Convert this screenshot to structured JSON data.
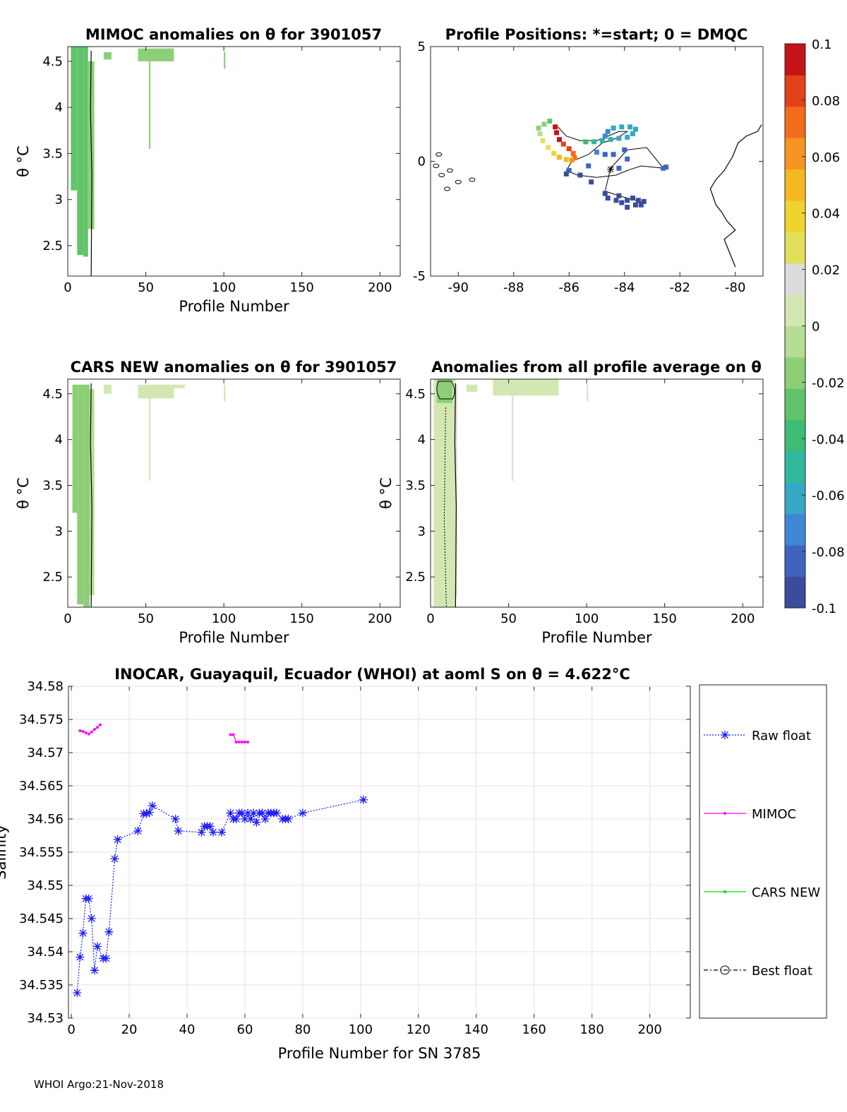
{
  "footer": "WHOI Argo:21-Nov-2018",
  "colorbar": {
    "tick_labels": [
      "0.1",
      "0.08",
      "0.06",
      "0.04",
      "0.02",
      "0",
      "-0.02",
      "-0.04",
      "-0.06",
      "-0.08",
      "-0.1"
    ],
    "range": [
      -0.1,
      0.1
    ],
    "colors": [
      "#3a4c9b",
      "#3f64c0",
      "#3d87d6",
      "#35a8c5",
      "#2fb89c",
      "#3cbc74",
      "#62c46a",
      "#8ccf77",
      "#b5dd94",
      "#d3e7b2",
      "#dcdcdc",
      "#e2e05a",
      "#efd430",
      "#f5b823",
      "#f59420",
      "#f16d1b",
      "#e2421a",
      "#c51417"
    ]
  },
  "chart_data": [
    {
      "id": "mimoc",
      "type": "heatmap",
      "title": "MIMOC anomalies on θ  for 3901057",
      "xlabel": "Profile Number",
      "ylabel": "θ °C",
      "xlim": [
        0,
        213
      ],
      "ylim": [
        2.17,
        4.66
      ],
      "xticks": [
        "0",
        "50",
        "100",
        "150",
        "200"
      ],
      "yticks": [
        "2.5",
        "3",
        "3.5",
        "4",
        "4.5"
      ],
      "cells": [
        {
          "x0": 2,
          "x1": 6,
          "y0": 3.1,
          "y1": 4.66,
          "v": -0.03
        },
        {
          "x0": 6,
          "x1": 10,
          "y0": 2.4,
          "y1": 4.66,
          "v": -0.028
        },
        {
          "x0": 10,
          "x1": 13,
          "y0": 2.38,
          "y1": 4.66,
          "v": -0.024
        },
        {
          "x0": 13,
          "x1": 17,
          "y0": 2.68,
          "y1": 4.5,
          "v": -0.018
        },
        {
          "x0": 23,
          "x1": 28,
          "y0": 4.52,
          "y1": 4.6,
          "v": -0.012
        },
        {
          "x0": 45,
          "x1": 68,
          "y0": 4.5,
          "y1": 4.64,
          "v": -0.012
        },
        {
          "x0": 52,
          "x1": 53,
          "y0": 3.55,
          "y1": 4.5,
          "v": -0.012
        },
        {
          "x0": 100,
          "x1": 101,
          "y0": 4.42,
          "y1": 4.6,
          "v": -0.012
        }
      ],
      "contour_x": 15
    },
    {
      "id": "positions",
      "type": "scatter",
      "title": "Profile Positions: *=start; 0 = DMQC",
      "xlim": [
        -91,
        -79
      ],
      "ylim": [
        -5,
        5
      ],
      "xticks": [
        "-90",
        "-88",
        "-86",
        "-84",
        "-82",
        "-80"
      ],
      "yticks": [
        "-5",
        "0",
        "5"
      ],
      "track": [
        [
          -86.4,
          1.5
        ],
        [
          -86.1,
          1.1
        ],
        [
          -85.6,
          0.9
        ],
        [
          -85.0,
          0.9
        ],
        [
          -84.6,
          1.1
        ],
        [
          -84.2,
          1.3
        ],
        [
          -83.9,
          1.3
        ],
        [
          -84.3,
          1.0
        ],
        [
          -84.8,
          0.8
        ],
        [
          -85.3,
          0.3
        ],
        [
          -85.9,
          0.0
        ],
        [
          -86.1,
          -0.4
        ],
        [
          -85.7,
          -0.6
        ],
        [
          -85.0,
          -0.7
        ],
        [
          -84.3,
          -0.6
        ],
        [
          -83.9,
          -0.4
        ],
        [
          -83.4,
          -0.2
        ],
        [
          -82.6,
          -0.3
        ],
        [
          -83.2,
          0.6
        ],
        [
          -83.9,
          0.5
        ],
        [
          -84.5,
          -0.3
        ],
        [
          -84.7,
          -1.3
        ],
        [
          -84.2,
          -1.5
        ],
        [
          -83.6,
          -1.7
        ],
        [
          -83.3,
          -1.8
        ]
      ],
      "points": [
        {
          "x": -86.5,
          "y": 1.5,
          "v": 0.095
        },
        {
          "x": -86.45,
          "y": 1.25,
          "v": 0.095
        },
        {
          "x": -86.35,
          "y": 0.95,
          "v": 0.09
        },
        {
          "x": -86.2,
          "y": 0.75,
          "v": 0.085
        },
        {
          "x": -86.0,
          "y": 0.55,
          "v": 0.08
        },
        {
          "x": -85.85,
          "y": 0.35,
          "v": 0.075
        },
        {
          "x": -85.8,
          "y": 0.15,
          "v": 0.07
        },
        {
          "x": -85.9,
          "y": 0.05,
          "v": 0.062
        },
        {
          "x": -86.1,
          "y": 0.08,
          "v": 0.055
        },
        {
          "x": -86.35,
          "y": 0.18,
          "v": 0.045
        },
        {
          "x": -86.55,
          "y": 0.35,
          "v": 0.035
        },
        {
          "x": -86.75,
          "y": 0.6,
          "v": 0.03
        },
        {
          "x": -86.95,
          "y": 0.9,
          "v": 0.025
        },
        {
          "x": -87.05,
          "y": 1.2,
          "v": -0.01
        },
        {
          "x": -87.1,
          "y": 1.45,
          "v": -0.015
        },
        {
          "x": -86.9,
          "y": 1.62,
          "v": -0.02
        },
        {
          "x": -86.7,
          "y": 1.75,
          "v": -0.025
        },
        {
          "x": -85.4,
          "y": 0.85,
          "v": -0.04
        },
        {
          "x": -85.1,
          "y": 0.85,
          "v": -0.045
        },
        {
          "x": -84.8,
          "y": 0.9,
          "v": -0.05
        },
        {
          "x": -84.5,
          "y": 0.95,
          "v": -0.055
        },
        {
          "x": -84.2,
          "y": 1.0,
          "v": -0.058
        },
        {
          "x": -83.9,
          "y": 1.05,
          "v": -0.06
        },
        {
          "x": -83.7,
          "y": 1.2,
          "v": -0.062
        },
        {
          "x": -83.6,
          "y": 1.4,
          "v": -0.062
        },
        {
          "x": -83.8,
          "y": 1.5,
          "v": -0.064
        },
        {
          "x": -84.1,
          "y": 1.5,
          "v": -0.065
        },
        {
          "x": -84.4,
          "y": 1.45,
          "v": -0.066
        },
        {
          "x": -84.6,
          "y": 1.3,
          "v": -0.067
        },
        {
          "x": -84.7,
          "y": 1.1,
          "v": -0.068
        },
        {
          "x": -85.0,
          "y": 0.4,
          "v": -0.075
        },
        {
          "x": -84.7,
          "y": 0.3,
          "v": -0.078
        },
        {
          "x": -84.4,
          "y": 0.3,
          "v": -0.078
        },
        {
          "x": -84.0,
          "y": 0.5,
          "v": -0.08
        },
        {
          "x": -83.9,
          "y": 0.1,
          "v": -0.08
        },
        {
          "x": -84.2,
          "y": -0.3,
          "v": -0.082
        },
        {
          "x": -82.6,
          "y": -0.3,
          "v": -0.08
        },
        {
          "x": -82.5,
          "y": -0.25,
          "v": -0.082
        },
        {
          "x": -85.3,
          "y": -0.2,
          "v": -0.085
        },
        {
          "x": -86.0,
          "y": -0.4,
          "v": -0.088
        },
        {
          "x": -86.1,
          "y": -0.55,
          "v": -0.09
        },
        {
          "x": -85.6,
          "y": -0.6,
          "v": -0.09
        },
        {
          "x": -85.2,
          "y": -0.9,
          "v": -0.09
        },
        {
          "x": -84.7,
          "y": -1.4,
          "v": -0.092
        },
        {
          "x": -84.6,
          "y": -1.6,
          "v": -0.092
        },
        {
          "x": -84.3,
          "y": -1.7,
          "v": -0.094
        },
        {
          "x": -84.1,
          "y": -1.8,
          "v": -0.094
        },
        {
          "x": -83.9,
          "y": -1.7,
          "v": -0.094
        },
        {
          "x": -83.7,
          "y": -1.6,
          "v": -0.094
        },
        {
          "x": -83.5,
          "y": -1.7,
          "v": -0.095
        },
        {
          "x": -83.4,
          "y": -1.9,
          "v": -0.096
        },
        {
          "x": -83.3,
          "y": -1.75,
          "v": -0.096
        },
        {
          "x": -83.6,
          "y": -1.9,
          "v": -0.095
        },
        {
          "x": -83.9,
          "y": -2.0,
          "v": -0.095
        },
        {
          "x": -84.2,
          "y": -1.5,
          "v": -0.094
        }
      ],
      "start": {
        "x": -84.5,
        "y": -0.35
      }
    },
    {
      "id": "cars",
      "type": "heatmap",
      "title": "CARS NEW anomalies on θ for 3901057",
      "xlabel": "Profile Number",
      "ylabel": "θ °C",
      "xlim": [
        0,
        213
      ],
      "ylim": [
        2.17,
        4.66
      ],
      "xticks": [
        "0",
        "50",
        "100",
        "150",
        "200"
      ],
      "yticks": [
        "2.5",
        "3",
        "3.5",
        "4",
        "4.5"
      ],
      "cells": [
        {
          "x0": 3,
          "x1": 6,
          "y0": 3.2,
          "y1": 4.6,
          "v": -0.016
        },
        {
          "x0": 6,
          "x1": 10,
          "y0": 2.2,
          "y1": 4.6,
          "v": -0.014
        },
        {
          "x0": 10,
          "x1": 14,
          "y0": 2.17,
          "y1": 4.6,
          "v": -0.012
        },
        {
          "x0": 14,
          "x1": 17,
          "y0": 2.3,
          "y1": 4.55,
          "v": -0.01
        },
        {
          "x0": 23,
          "x1": 28,
          "y0": 4.5,
          "y1": 4.6,
          "v": 0.0
        },
        {
          "x0": 45,
          "x1": 68,
          "y0": 4.45,
          "y1": 4.6,
          "v": 0.0
        },
        {
          "x0": 52,
          "x1": 53,
          "y0": 3.55,
          "y1": 4.5,
          "v": 0.0
        },
        {
          "x0": 68,
          "x1": 75,
          "y0": 4.56,
          "y1": 4.6,
          "v": 0.0
        },
        {
          "x0": 100,
          "x1": 101,
          "y0": 4.42,
          "y1": 4.6,
          "v": 0.0
        }
      ],
      "contour_x": 15
    },
    {
      "id": "allavg",
      "type": "heatmap",
      "title": "Anomalies from all profile average on θ",
      "xlabel": "Profile Number",
      "ylabel": "θ °C",
      "xlim": [
        0,
        213
      ],
      "ylim": [
        2.17,
        4.66
      ],
      "xticks": [
        "0",
        "50",
        "100",
        "150",
        "200"
      ],
      "yticks": [
        "2.5",
        "3",
        "3.5",
        "4",
        "4.5"
      ],
      "cells": [
        {
          "x0": 2,
          "x1": 16,
          "y0": 2.17,
          "y1": 4.66,
          "v": 0.0
        },
        {
          "x0": 4,
          "x1": 14,
          "y0": 4.4,
          "y1": 4.66,
          "v": -0.014
        },
        {
          "x0": 16,
          "x1": 17,
          "y0": 2.3,
          "y1": 4.6,
          "v": 0.015
        },
        {
          "x0": 23,
          "x1": 30,
          "y0": 4.52,
          "y1": 4.6,
          "v": 0.0
        },
        {
          "x0": 40,
          "x1": 82,
          "y0": 4.48,
          "y1": 4.66,
          "v": 0.0
        },
        {
          "x0": 52,
          "x1": 53,
          "y0": 3.55,
          "y1": 4.5,
          "v": 0.015
        },
        {
          "x0": 100,
          "x1": 101,
          "y0": 4.42,
          "y1": 4.6,
          "v": 0.015
        }
      ],
      "contour_x": 16
    },
    {
      "id": "salinity",
      "type": "line",
      "title": "INOCAR, Guayaquil, Ecuador (WHOI) at aoml S on θ = 4.622°C",
      "xlabel": "Profile Number for SN 3785",
      "ylabel": "Salinity",
      "xlim": [
        -1,
        214
      ],
      "ylim": [
        34.53,
        34.58
      ],
      "xticks": [
        "0",
        "20",
        "40",
        "60",
        "80",
        "100",
        "120",
        "140",
        "160",
        "180",
        "200"
      ],
      "yticks": [
        "34.53",
        "34.535",
        "34.54",
        "34.545",
        "34.55",
        "34.555",
        "34.56",
        "34.565",
        "34.57",
        "34.575",
        "34.58"
      ],
      "legend": [
        "Raw float",
        "MIMOC",
        "CARS NEW",
        "Best float"
      ],
      "series": [
        {
          "name": "Raw float",
          "color": "#1a1aff",
          "x": [
            2,
            3,
            4,
            5,
            6,
            7,
            8,
            9,
            11,
            12,
            13,
            15,
            16,
            23,
            25,
            26,
            27,
            28,
            36,
            37,
            45,
            46,
            47,
            48,
            49,
            52,
            55,
            56,
            57,
            58,
            59,
            60,
            61,
            62,
            63,
            64,
            65,
            66,
            67,
            68,
            69,
            70,
            71,
            73,
            74,
            75,
            80,
            101
          ],
          "y": [
            34.5338,
            34.5392,
            34.5428,
            34.548,
            34.548,
            34.545,
            34.5372,
            34.5408,
            34.539,
            34.539,
            34.543,
            34.554,
            34.5569,
            34.5582,
            34.5608,
            34.5608,
            34.561,
            34.562,
            34.56,
            34.5582,
            34.558,
            34.5589,
            34.5589,
            34.5589,
            34.558,
            34.558,
            34.5609,
            34.56,
            34.56,
            34.5609,
            34.5609,
            34.56,
            34.5609,
            34.56,
            34.5609,
            34.5595,
            34.5609,
            34.5609,
            34.56,
            34.5609,
            34.5609,
            34.5609,
            34.5609,
            34.56,
            34.56,
            34.56,
            34.5609,
            34.5629
          ]
        },
        {
          "name": "MIMOC",
          "color": "#ff00ff",
          "x": [
            3,
            4,
            5,
            6,
            7,
            8,
            9,
            10,
            55,
            56,
            57,
            58,
            59,
            60,
            61
          ],
          "y": [
            34.5733,
            34.5732,
            34.573,
            34.5728,
            34.5731,
            34.5735,
            34.5738,
            34.5742,
            34.5727,
            34.5727,
            34.5716,
            34.5716,
            34.5716,
            34.5716,
            34.5716
          ]
        },
        {
          "name": "CARS NEW",
          "color": "#00e000",
          "x": [],
          "y": []
        },
        {
          "name": "Best float",
          "color": "#000000",
          "x": [],
          "y": []
        }
      ]
    }
  ]
}
